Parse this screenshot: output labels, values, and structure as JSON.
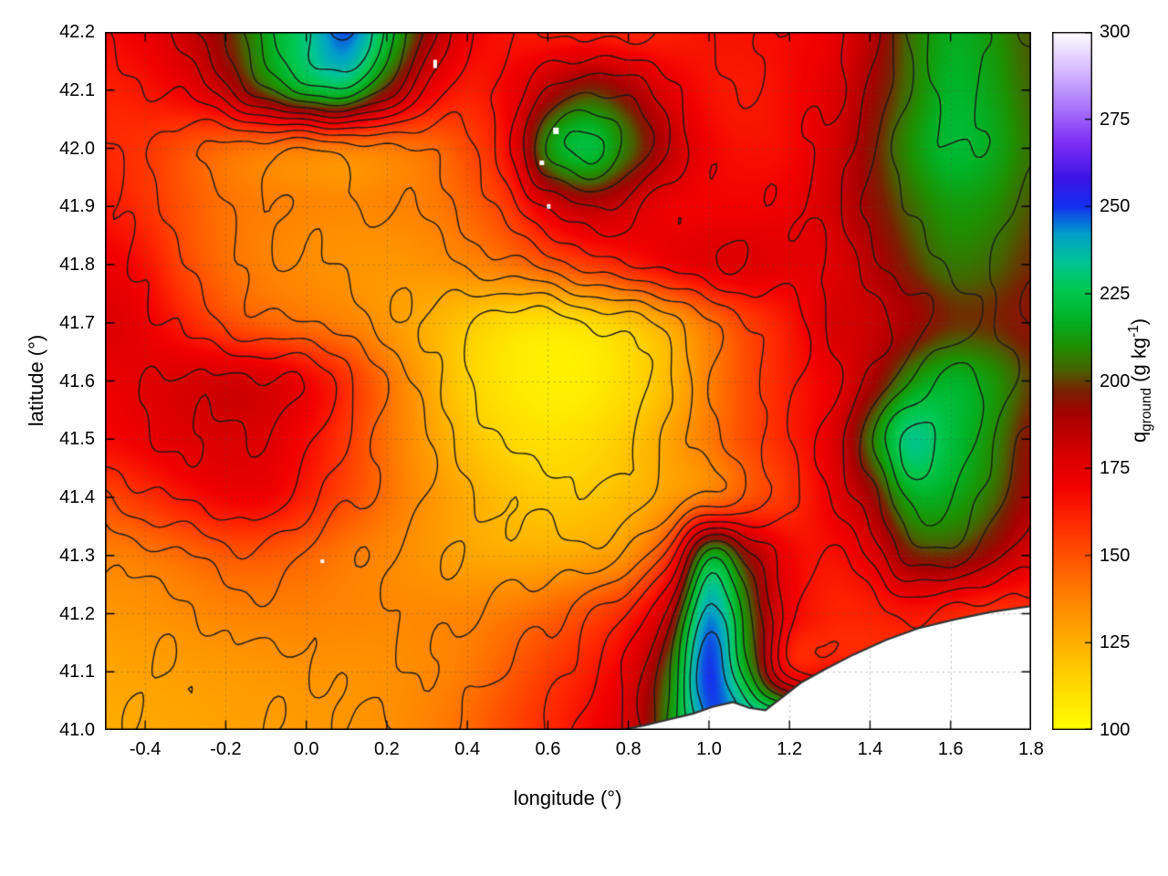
{
  "chart_data": {
    "type": "heatmap",
    "xlabel": "longitude (°)",
    "ylabel": "latitude (°)",
    "x_range": [
      -0.5,
      1.8
    ],
    "y_range": [
      41.0,
      42.2
    ],
    "xticks": [
      "-0.4",
      "-0.2",
      "0.0",
      "0.2",
      "0.4",
      "0.6",
      "0.8",
      "1.0",
      "1.2",
      "1.4",
      "1.6",
      "1.8"
    ],
    "yticks": [
      "41.0",
      "41.1",
      "41.2",
      "41.3",
      "41.4",
      "41.5",
      "41.6",
      "41.7",
      "41.8",
      "41.9",
      "42.0",
      "42.1",
      "42.2"
    ],
    "grid_on": true,
    "colorbar": {
      "range": [
        100,
        300
      ],
      "ticks": [
        "100",
        "125",
        "150",
        "175",
        "200",
        "225",
        "250",
        "275",
        "300"
      ],
      "label": "q_ground (g kg^-1)",
      "label_parts": {
        "base": "q",
        "sub": "ground",
        "unit_open": " (g kg",
        "sup": "-1",
        "unit_close": ")"
      }
    },
    "palette": [
      [
        100,
        "#ffff00"
      ],
      [
        115,
        "#ffd200"
      ],
      [
        127,
        "#ffa800"
      ],
      [
        139,
        "#ff7e00"
      ],
      [
        150,
        "#ff5000"
      ],
      [
        160,
        "#ff2800"
      ],
      [
        170,
        "#f20000"
      ],
      [
        180,
        "#d40000"
      ],
      [
        190,
        "#a80000"
      ],
      [
        197,
        "#7a2000"
      ],
      [
        203,
        "#486000"
      ],
      [
        210,
        "#1e9000"
      ],
      [
        218,
        "#00b428"
      ],
      [
        226,
        "#00c850"
      ],
      [
        234,
        "#00c494"
      ],
      [
        242,
        "#00a0c8"
      ],
      [
        250,
        "#1430f0"
      ],
      [
        258,
        "#3c14e6"
      ],
      [
        268,
        "#7d2df5"
      ],
      [
        278,
        "#a972fa"
      ],
      [
        288,
        "#d2b4ff"
      ],
      [
        300,
        "#ffffff"
      ]
    ],
    "contour_levels": [
      115,
      125,
      135,
      145,
      155,
      165,
      175,
      185,
      195,
      205,
      215,
      225,
      235,
      245
    ],
    "grid": {
      "lons": [
        -0.5,
        -0.4,
        -0.3,
        -0.2,
        -0.1,
        0.0,
        0.1,
        0.2,
        0.3,
        0.4,
        0.5,
        0.6,
        0.7,
        0.8,
        0.9,
        1.0,
        1.1,
        1.2,
        1.3,
        1.4,
        1.5,
        1.6,
        1.7,
        1.8
      ],
      "lats": [
        42.2,
        42.1,
        42.0,
        41.9,
        41.8,
        41.7,
        41.6,
        41.5,
        41.4,
        41.3,
        41.2,
        41.1,
        41.0
      ],
      "values": [
        [
          168,
          172,
          182,
          196,
          215,
          232,
          248,
          222,
          192,
          172,
          165,
          163,
          162,
          160,
          162,
          165,
          166,
          168,
          172,
          186,
          205,
          216,
          212,
          202
        ],
        [
          162,
          165,
          172,
          184,
          203,
          218,
          222,
          196,
          174,
          163,
          170,
          186,
          198,
          190,
          175,
          166,
          164,
          168,
          176,
          190,
          206,
          218,
          214,
          204
        ],
        [
          160,
          157,
          150,
          144,
          141,
          140,
          139,
          140,
          143,
          152,
          168,
          210,
          222,
          205,
          185,
          170,
          166,
          168,
          178,
          194,
          210,
          220,
          216,
          206
        ],
        [
          164,
          158,
          149,
          142,
          139,
          137,
          136,
          137,
          139,
          145,
          156,
          176,
          186,
          180,
          172,
          170,
          170,
          172,
          180,
          192,
          204,
          212,
          210,
          202
        ],
        [
          172,
          166,
          152,
          143,
          138,
          135,
          133,
          132,
          133,
          136,
          141,
          148,
          155,
          162,
          170,
          175,
          176,
          174,
          176,
          186,
          198,
          206,
          204,
          198
        ],
        [
          178,
          172,
          162,
          152,
          146,
          142,
          138,
          132,
          125,
          118,
          112,
          110,
          112,
          118,
          128,
          142,
          155,
          165,
          178,
          182,
          190,
          198,
          198,
          194
        ],
        [
          172,
          175,
          178,
          180,
          178,
          170,
          158,
          142,
          128,
          115,
          108,
          105,
          106,
          112,
          122,
          138,
          152,
          163,
          172,
          188,
          210,
          218,
          212,
          200
        ],
        [
          168,
          172,
          176,
          178,
          176,
          168,
          156,
          142,
          130,
          120,
          113,
          110,
          112,
          118,
          128,
          140,
          152,
          162,
          175,
          205,
          232,
          222,
          210,
          194
        ],
        [
          152,
          158,
          165,
          170,
          170,
          162,
          152,
          142,
          133,
          126,
          120,
          117,
          118,
          122,
          130,
          140,
          150,
          158,
          172,
          190,
          215,
          215,
          205,
          190
        ],
        [
          138,
          140,
          144,
          148,
          148,
          145,
          140,
          136,
          132,
          128,
          126,
          126,
          128,
          134,
          158,
          215,
          192,
          170,
          166,
          175,
          195,
          198,
          190,
          178
        ],
        [
          132,
          133,
          135,
          137,
          138,
          138,
          137,
          136,
          136,
          137,
          140,
          145,
          152,
          162,
          185,
          242,
          205,
          172,
          162,
          162,
          165,
          162,
          158,
          null
        ],
        [
          128,
          129,
          130,
          131,
          132,
          133,
          133,
          134,
          136,
          140,
          147,
          155,
          163,
          175,
          205,
          250,
          212,
          168,
          null,
          null,
          null,
          null,
          null,
          null
        ],
        [
          126,
          127,
          128,
          129,
          130,
          131,
          132,
          134,
          138,
          144,
          152,
          160,
          168,
          180,
          210,
          246,
          null,
          null,
          null,
          null,
          null,
          null,
          null,
          null
        ]
      ]
    },
    "coastline": [
      [
        0.78,
        41.0
      ],
      [
        0.84,
        41.008
      ],
      [
        0.9,
        41.018
      ],
      [
        0.96,
        41.028
      ],
      [
        1.01,
        41.04
      ],
      [
        1.06,
        41.048
      ],
      [
        1.1,
        41.038
      ],
      [
        1.14,
        41.034
      ],
      [
        1.18,
        41.055
      ],
      [
        1.23,
        41.082
      ],
      [
        1.29,
        41.105
      ],
      [
        1.36,
        41.13
      ],
      [
        1.44,
        41.155
      ],
      [
        1.52,
        41.175
      ],
      [
        1.61,
        41.19
      ],
      [
        1.7,
        41.203
      ],
      [
        1.8,
        41.213
      ]
    ],
    "missing_data_dots": [
      [
        0.32,
        42.145,
        4,
        9
      ],
      [
        0.62,
        42.03,
        6,
        7
      ],
      [
        0.585,
        41.975,
        5,
        5
      ],
      [
        0.602,
        41.9,
        4,
        5
      ],
      [
        0.04,
        41.29,
        4,
        4
      ]
    ],
    "style": {
      "contour_color": "#1a1a1a",
      "coast_color": "#333333",
      "sea_color": "#ffffff",
      "background": "#ffffff",
      "frame_color": "#000000",
      "gridline_color": "#555555"
    }
  }
}
